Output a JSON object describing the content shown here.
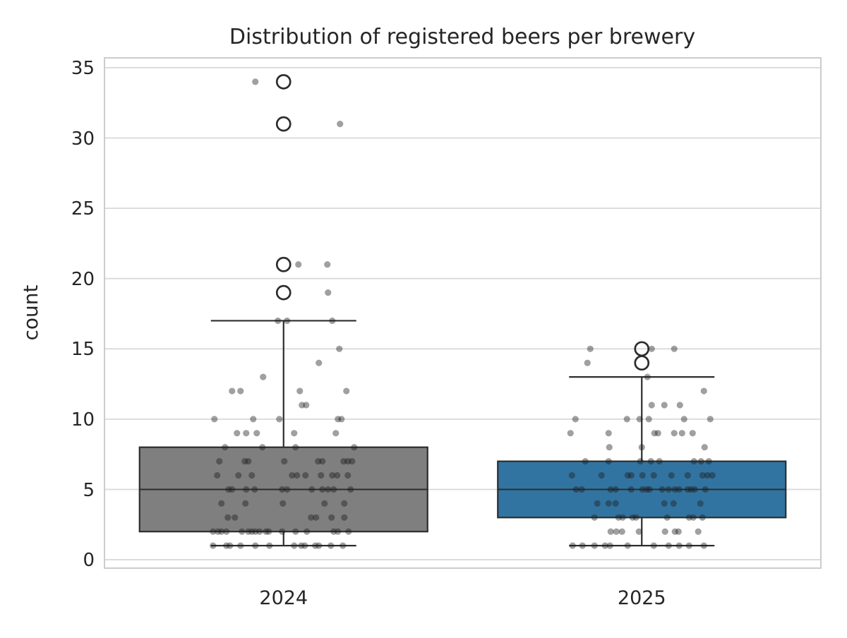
{
  "chart_data": {
    "type": "box",
    "title": "Distribution of registered beers per brewery",
    "ylabel": "count",
    "xlabel": "",
    "categories": [
      "2024",
      "2025"
    ],
    "yticks": [
      0,
      5,
      10,
      15,
      20,
      25,
      30,
      35
    ],
    "ylim": [
      -0.6,
      35.7
    ],
    "grid": "horizontal-only",
    "legend": "none",
    "colors": {
      "grid": "#d9d9d9",
      "spine": "#cccccc",
      "text": "#262626",
      "box_edge": "#2d2d2d",
      "point": "#1c1c1c",
      "box_2024": "#7f7f7f",
      "box_2025": "#3274a1"
    },
    "point_style": {
      "radius": 4.6,
      "opacity": 0.42
    },
    "flier_style": {
      "radius": 9.5,
      "stroke_width": 2.7
    },
    "series": [
      {
        "name": "2024",
        "box_color": "#7f7f7f",
        "q1": 2,
        "median": 5,
        "q3": 8,
        "whisker_low": 1,
        "whisker_high": 17,
        "fliers": [
          19,
          21,
          31,
          34
        ],
        "points": [
          [
            34,
            -40
          ],
          [
            31,
            80
          ],
          [
            21,
            21
          ],
          [
            21,
            62
          ],
          [
            19,
            63
          ],
          [
            17,
            -8
          ],
          [
            17,
            5
          ],
          [
            17,
            69
          ],
          [
            15,
            79
          ],
          [
            14,
            50
          ],
          [
            13,
            -29
          ],
          [
            12,
            -73
          ],
          [
            12,
            -61
          ],
          [
            12,
            23
          ],
          [
            12,
            89
          ],
          [
            11,
            26
          ],
          [
            11,
            32
          ],
          [
            10,
            -98
          ],
          [
            10,
            -43
          ],
          [
            10,
            -6
          ],
          [
            10,
            77
          ],
          [
            10,
            82
          ],
          [
            9,
            -66
          ],
          [
            9,
            -53
          ],
          [
            9,
            -38
          ],
          [
            9,
            15
          ],
          [
            9,
            74
          ],
          [
            8,
            -83
          ],
          [
            8,
            -30
          ],
          [
            8,
            17
          ],
          [
            8,
            100
          ],
          [
            7,
            -91
          ],
          [
            7,
            -55
          ],
          [
            7,
            -50
          ],
          [
            7,
            1
          ],
          [
            7,
            49
          ],
          [
            7,
            55
          ],
          [
            7,
            85
          ],
          [
            7,
            91
          ],
          [
            7,
            97
          ],
          [
            6,
            -94
          ],
          [
            6,
            -64
          ],
          [
            6,
            -45
          ],
          [
            6,
            12
          ],
          [
            6,
            19
          ],
          [
            6,
            31
          ],
          [
            6,
            53
          ],
          [
            6,
            69
          ],
          [
            6,
            76
          ],
          [
            6,
            91
          ],
          [
            5,
            -78
          ],
          [
            5,
            -73
          ],
          [
            5,
            -53
          ],
          [
            5,
            -41
          ],
          [
            5,
            -2
          ],
          [
            5,
            5
          ],
          [
            5,
            40
          ],
          [
            5,
            55
          ],
          [
            5,
            63
          ],
          [
            5,
            71
          ],
          [
            5,
            95
          ],
          [
            4,
            -88
          ],
          [
            4,
            -54
          ],
          [
            4,
            -1
          ],
          [
            4,
            58
          ],
          [
            4,
            86
          ],
          [
            3,
            -79
          ],
          [
            3,
            -69
          ],
          [
            3,
            39
          ],
          [
            3,
            46
          ],
          [
            3,
            68
          ],
          [
            3,
            86
          ],
          [
            2,
            -100
          ],
          [
            2,
            -93
          ],
          [
            2,
            -88
          ],
          [
            2,
            -81
          ],
          [
            2,
            -59
          ],
          [
            2,
            -50
          ],
          [
            2,
            -45
          ],
          [
            2,
            -40
          ],
          [
            2,
            -34
          ],
          [
            2,
            -25
          ],
          [
            2,
            -21
          ],
          [
            2,
            -2
          ],
          [
            2,
            17
          ],
          [
            2,
            33
          ],
          [
            2,
            71
          ],
          [
            2,
            77
          ],
          [
            2,
            92
          ],
          [
            1,
            -100
          ],
          [
            1,
            -81
          ],
          [
            1,
            -76
          ],
          [
            1,
            -61
          ],
          [
            1,
            -40
          ],
          [
            1,
            -20
          ],
          [
            1,
            15
          ],
          [
            1,
            25
          ],
          [
            1,
            30
          ],
          [
            1,
            45
          ],
          [
            1,
            50
          ],
          [
            1,
            67
          ],
          [
            1,
            84
          ]
        ]
      },
      {
        "name": "2025",
        "box_color": "#3274a1",
        "q1": 3,
        "median": 5,
        "q3": 7,
        "whisker_low": 1,
        "whisker_high": 13,
        "fliers": [
          14,
          15
        ],
        "points": [
          [
            15,
            -73
          ],
          [
            15,
            14
          ],
          [
            15,
            46
          ],
          [
            14,
            -77
          ],
          [
            13,
            8
          ],
          [
            12,
            88
          ],
          [
            11,
            14
          ],
          [
            11,
            32
          ],
          [
            11,
            54
          ],
          [
            10,
            -94
          ],
          [
            10,
            -21
          ],
          [
            10,
            -3
          ],
          [
            10,
            10
          ],
          [
            10,
            60
          ],
          [
            10,
            97
          ],
          [
            9,
            -101
          ],
          [
            9,
            -47
          ],
          [
            9,
            18
          ],
          [
            9,
            23
          ],
          [
            9,
            46
          ],
          [
            9,
            57
          ],
          [
            9,
            72
          ],
          [
            8,
            -46
          ],
          [
            8,
            0
          ],
          [
            8,
            89
          ],
          [
            7,
            -80
          ],
          [
            7,
            -47
          ],
          [
            7,
            -2
          ],
          [
            7,
            13
          ],
          [
            7,
            25
          ],
          [
            7,
            74
          ],
          [
            7,
            84
          ],
          [
            7,
            95
          ],
          [
            6,
            -99
          ],
          [
            6,
            -57
          ],
          [
            6,
            -20
          ],
          [
            6,
            -15
          ],
          [
            6,
            1
          ],
          [
            6,
            17
          ],
          [
            6,
            42
          ],
          [
            6,
            65
          ],
          [
            6,
            86
          ],
          [
            6,
            93
          ],
          [
            6,
            100
          ],
          [
            5,
            -93
          ],
          [
            5,
            -85
          ],
          [
            5,
            -44
          ],
          [
            5,
            -37
          ],
          [
            5,
            -15
          ],
          [
            5,
            1
          ],
          [
            5,
            7
          ],
          [
            5,
            11
          ],
          [
            5,
            29
          ],
          [
            5,
            38
          ],
          [
            5,
            47
          ],
          [
            5,
            53
          ],
          [
            5,
            65
          ],
          [
            5,
            70
          ],
          [
            5,
            75
          ],
          [
            5,
            90
          ],
          [
            4,
            -63
          ],
          [
            4,
            -47
          ],
          [
            4,
            -37
          ],
          [
            4,
            32
          ],
          [
            4,
            45
          ],
          [
            4,
            83
          ],
          [
            3,
            -67
          ],
          [
            3,
            -33
          ],
          [
            3,
            -27
          ],
          [
            3,
            -13
          ],
          [
            3,
            -8
          ],
          [
            3,
            36
          ],
          [
            3,
            67
          ],
          [
            3,
            73
          ],
          [
            3,
            86
          ],
          [
            2,
            -44
          ],
          [
            2,
            -36
          ],
          [
            2,
            -28
          ],
          [
            2,
            -4
          ],
          [
            2,
            33
          ],
          [
            2,
            47
          ],
          [
            2,
            52
          ],
          [
            2,
            80
          ],
          [
            1,
            -98
          ],
          [
            1,
            -84
          ],
          [
            1,
            -67
          ],
          [
            1,
            -52
          ],
          [
            1,
            -45
          ],
          [
            1,
            -20
          ],
          [
            1,
            17
          ],
          [
            1,
            38
          ],
          [
            1,
            53
          ],
          [
            1,
            67
          ],
          [
            1,
            88
          ]
        ]
      }
    ]
  }
}
